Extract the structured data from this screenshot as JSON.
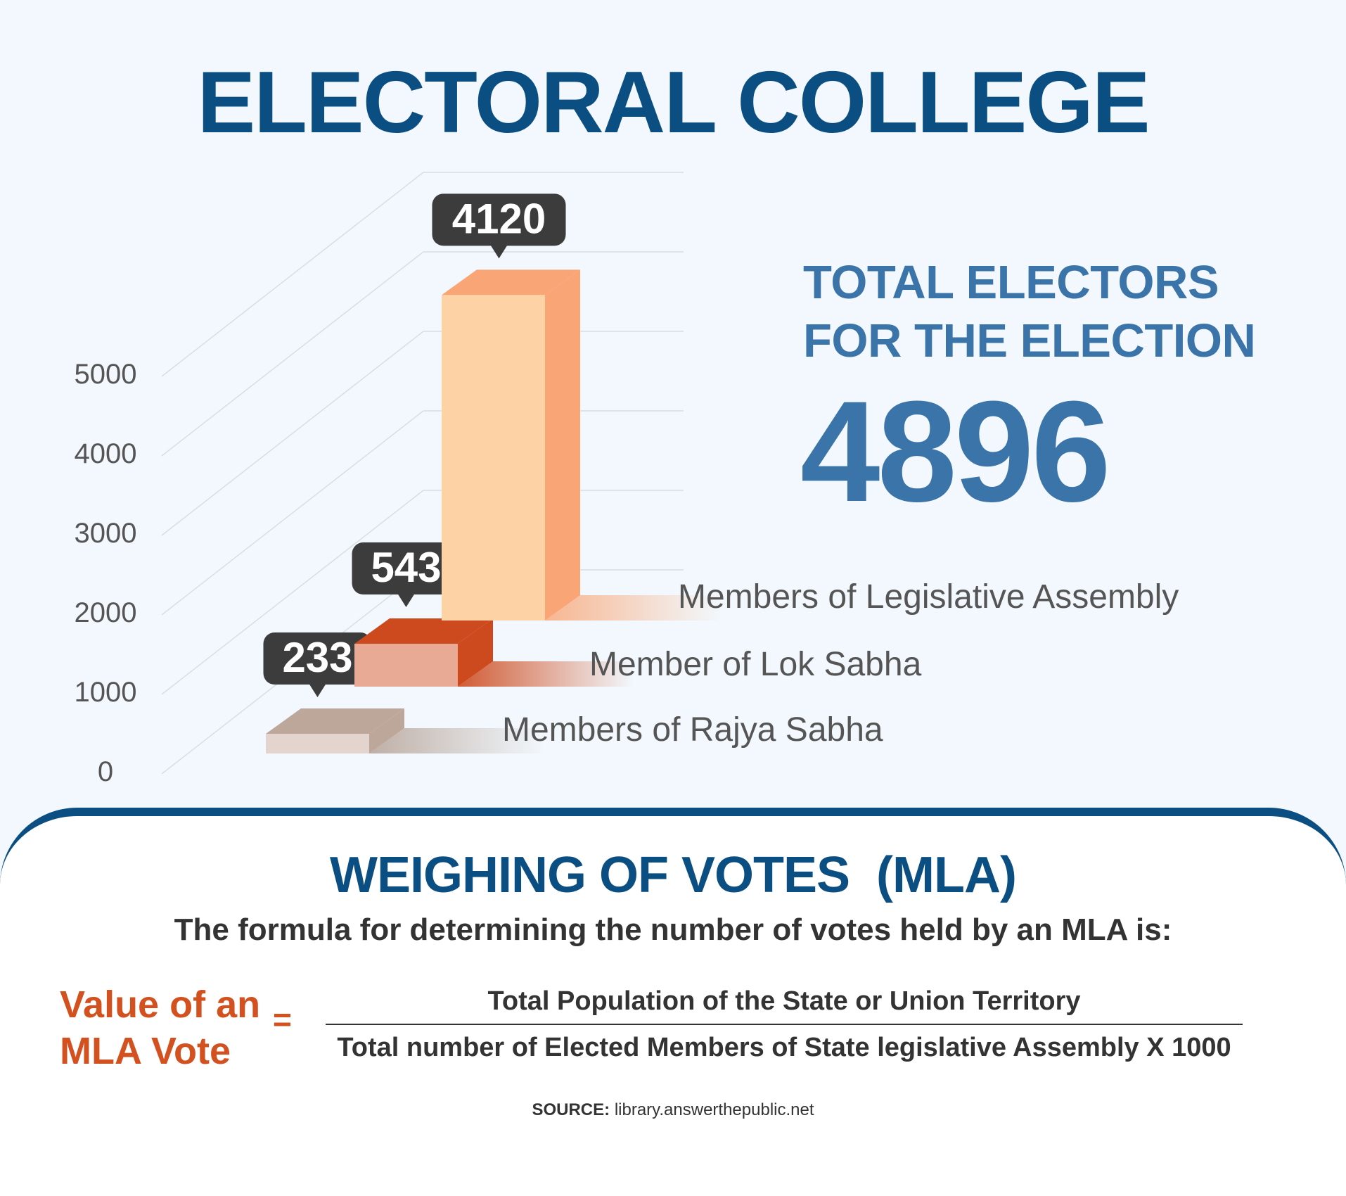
{
  "title": "ELECTORAL COLLEGE",
  "chart_data": {
    "type": "bar",
    "categories": [
      "Members of Rajya Sabha",
      "Member of Lok Sabha",
      "Members of Legislative Assembly"
    ],
    "values": [
      233,
      543,
      4120
    ],
    "yticks": [
      "0",
      "1000",
      "2000",
      "3000",
      "4000",
      "5000"
    ],
    "ylim": [
      0,
      5000
    ],
    "data_labels": [
      "233",
      "543",
      "4120"
    ],
    "grid": true,
    "style": "3d-bars"
  },
  "total": {
    "label_line1": "TOTAL ELECTORS",
    "label_line2": "FOR THE ELECTION",
    "value": "4896"
  },
  "weighing": {
    "title": "WEIGHING OF VOTES  (MLA)",
    "intro": "The formula for determining the number of votes held by an MLA is:",
    "lhs_line1": "Value of an",
    "lhs_line2": "MLA Vote",
    "equals": "=",
    "numerator": "Total Population of the State or Union Territory",
    "denominator": "Total number of Elected Members of State legislative Assembly X 1000"
  },
  "source": {
    "label": "SOURCE:",
    "text": "library.answerthepublic.net"
  },
  "colors": {
    "title_blue": "#0b4f82",
    "accent_blue": "#3a74a9",
    "accent_orange": "#d3501f",
    "mla_front": "#fdd3a5",
    "mla_side": "#f9a575",
    "lok_front": "#e8a995",
    "lok_side": "#cd4a1e",
    "rajya_front": "#e3d5cd",
    "rajya_side": "#bda79b",
    "callout": "#3c3c3c"
  }
}
